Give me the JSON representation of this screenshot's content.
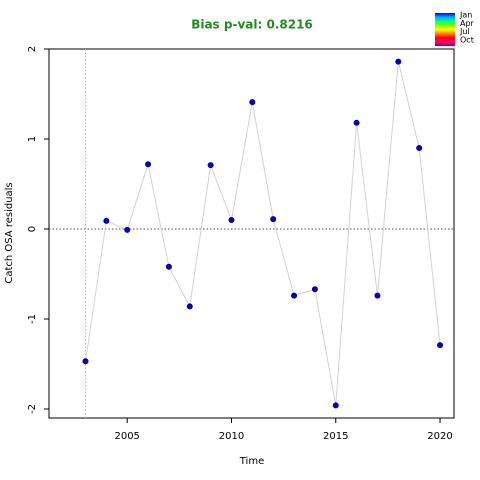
{
  "chart_data": {
    "type": "line",
    "title": "Bias p-val: 0.8216",
    "title_color": "#228b22",
    "xlabel": "Time",
    "ylabel": "Catch OSA residuals",
    "x": [
      2003,
      2004,
      2005,
      2006,
      2007,
      2008,
      2009,
      2010,
      2011,
      2012,
      2013,
      2014,
      2015,
      2016,
      2017,
      2018,
      2019,
      2020
    ],
    "series": [
      {
        "color": "#0000cd",
        "line_color": "#d3d3d3",
        "values": [
          -1.47,
          0.09,
          -0.01,
          0.72,
          -0.42,
          -0.86,
          0.71,
          0.1,
          1.41,
          0.11,
          -0.74,
          -0.67,
          -1.96,
          1.18,
          -0.74,
          1.86,
          0.9,
          -1.29
        ]
      }
    ],
    "xlim": [
      2001.25,
      2020.67
    ],
    "xticks": [
      2005,
      2010,
      2015,
      2020
    ],
    "ylim": [
      -2.1,
      2.0
    ],
    "yticks": [
      -2,
      -1,
      0,
      1,
      2
    ],
    "hline": 0,
    "vline": 2003,
    "legend_labels": [
      "Jan",
      "Apr",
      "Jul",
      "Oct"
    ],
    "legend_colors": [
      "#0000ff",
      "#00aaff",
      "#00ff80",
      "#80ff00",
      "#ffff00",
      "#ff8000",
      "#ff0000",
      "#ff0080",
      "#800080"
    ]
  }
}
